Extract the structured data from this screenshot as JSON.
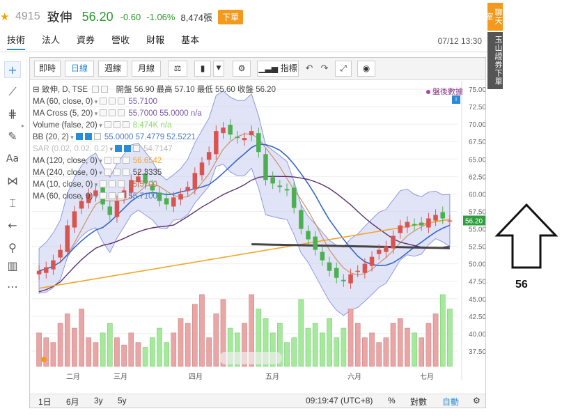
{
  "header": {
    "code": "4915",
    "name": "致伸",
    "price": "56.20",
    "change": "-0.60",
    "change_pct": "-1.06%",
    "volume": "8,474張",
    "order_button": "下單"
  },
  "side_labels": {
    "chat": "聊天室",
    "trade": "玉山證券下單"
  },
  "tabs": [
    "技術",
    "法人",
    "資券",
    "營收",
    "財報",
    "基本"
  ],
  "datetime": "07/12 13:30",
  "toolbar": {
    "periods": [
      "即時",
      "日線",
      "週線",
      "月線"
    ],
    "active_period": "日線",
    "indicator_label": "指標"
  },
  "legend": {
    "title": "致伸, D, TSE",
    "ohlc": "開盤 56.90 最高 57.10 最低 55.60 收盤 56.20",
    "items": [
      {
        "label": "MA (60, close, 0)",
        "value": "55.7100",
        "color": "#7a5aa6"
      },
      {
        "label": "MA Cross (5, 20)",
        "value": "55.7000 55.0000 n/a",
        "color": "#7a5aa6"
      },
      {
        "label": "Volume (false, 20)",
        "value": "8.474K n/a",
        "color": "#8bdc6b"
      },
      {
        "label": "BB (20, 2)",
        "value": "55.0000 57.4779 52.5221",
        "color": "#4d7ac9"
      },
      {
        "label": "SAR (0.02, 0.02, 0.2)",
        "value": "54.7147",
        "color": "#bbbbbb"
      },
      {
        "label": "MA (120, close, 0)",
        "value": "56.6542",
        "color": "#f3a52b"
      },
      {
        "label": "MA (240, close, 0)",
        "value": "52.3335",
        "color": "#444444"
      },
      {
        "label": "MA (10, close, 0)",
        "value": "55.5700",
        "color": "#b08050"
      },
      {
        "label": "MA (60, close, 0)",
        "value": "55.7100",
        "color": "#4d7ac9"
      }
    ]
  },
  "after_hours": "盤後數據",
  "price_axis": {
    "ticks": [
      "75.00",
      "72.50",
      "70.00",
      "67.50",
      "65.00",
      "62.50",
      "60.00",
      "57.50",
      "55.00",
      "52.50",
      "50.00",
      "47.50",
      "45.00",
      "42.50",
      "40.00",
      "37.50"
    ],
    "last_label": "56.20"
  },
  "month_labels": [
    "二月",
    "三月",
    "四月",
    "五月",
    "六月",
    "七月"
  ],
  "bottom_bar": {
    "ranges": [
      "1日",
      "6月",
      "3y",
      "5y"
    ],
    "time": "09:19:47 (UTC+8)",
    "pct": "%",
    "log": "對數",
    "auto": "自動"
  },
  "annotation": "56",
  "chart_data": {
    "type": "candlestick",
    "ylim": [
      37.5,
      75
    ],
    "series": [
      {
        "name": "Close",
        "values": [
          49.0,
          49.5,
          50.5,
          52.0,
          55.5,
          57.5,
          59.0,
          60.0,
          60.5,
          58.5,
          57.0,
          59.0,
          60.5,
          62.0,
          62.5,
          61.5,
          60.5,
          59.0,
          58.5,
          59.5,
          60.0,
          61.0,
          63.0,
          64.5,
          66.0,
          69.0,
          69.5,
          68.5,
          68.0,
          68.0,
          69.0,
          66.0,
          62.0,
          61.5,
          61.0,
          60.5,
          58.0,
          55.0,
          53.5,
          52.0,
          50.5,
          49.0,
          48.0,
          47.5,
          48.5,
          49.0,
          50.0,
          51.0,
          52.0,
          52.5,
          54.0,
          55.5,
          56.0,
          55.5,
          55.5,
          56.5,
          57.0,
          56.5,
          56.2
        ]
      }
    ],
    "volume": {
      "name": "Volume",
      "values": [
        14,
        12,
        10,
        18,
        22,
        16,
        24,
        12,
        10,
        14,
        18,
        12,
        9,
        14,
        10,
        8,
        12,
        16,
        10,
        14,
        20,
        18,
        26,
        30,
        12,
        22,
        28,
        16,
        14,
        18,
        30,
        24,
        20,
        14,
        18,
        10,
        12,
        28,
        16,
        18,
        14,
        20,
        12,
        16,
        24,
        18,
        12,
        14,
        10,
        12,
        18,
        20,
        16,
        14,
        12,
        18,
        22,
        30,
        24
      ]
    }
  }
}
